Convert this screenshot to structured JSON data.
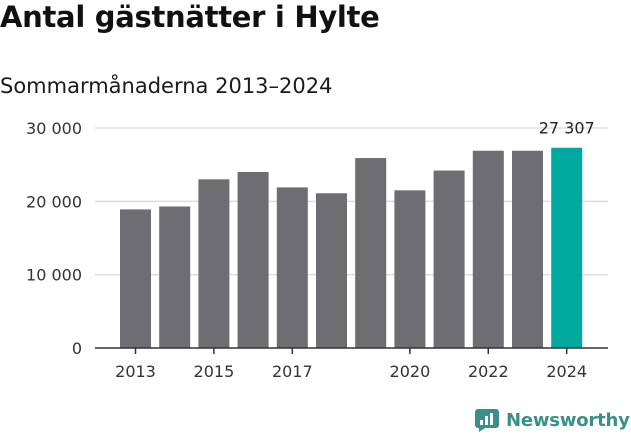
{
  "title": "Antal gästnätter i Hylte",
  "subtitle": "Sommarmånaderna 2013–2024",
  "brand": "Newsworthy",
  "colors": {
    "bar": "#6e6e72",
    "highlight": "#00a99d",
    "grid": "#dddddd",
    "axis": "#333333",
    "brand": "#3a8f86"
  },
  "chart_data": {
    "type": "bar",
    "categories": [
      "2013",
      "2014",
      "2015",
      "2016",
      "2017",
      "2018",
      "2019",
      "2020",
      "2021",
      "2022",
      "2023",
      "2024"
    ],
    "values": [
      18900,
      19300,
      23000,
      24000,
      21900,
      21100,
      25900,
      21500,
      24200,
      26900,
      26900,
      27307
    ],
    "x_tick_labels": [
      "2013",
      "2015",
      "2017",
      "2020",
      "2022",
      "2024"
    ],
    "y_ticks": [
      0,
      10000,
      20000,
      30000
    ],
    "y_tick_labels": [
      "0",
      "10 000",
      "20 000",
      "30 000"
    ],
    "ylim": [
      0,
      30000
    ],
    "highlight_index": 11,
    "data_labels": [
      {
        "index": 11,
        "text": "27 307"
      }
    ],
    "xlabel": "",
    "ylabel": "",
    "grid": true,
    "legend": "none"
  }
}
